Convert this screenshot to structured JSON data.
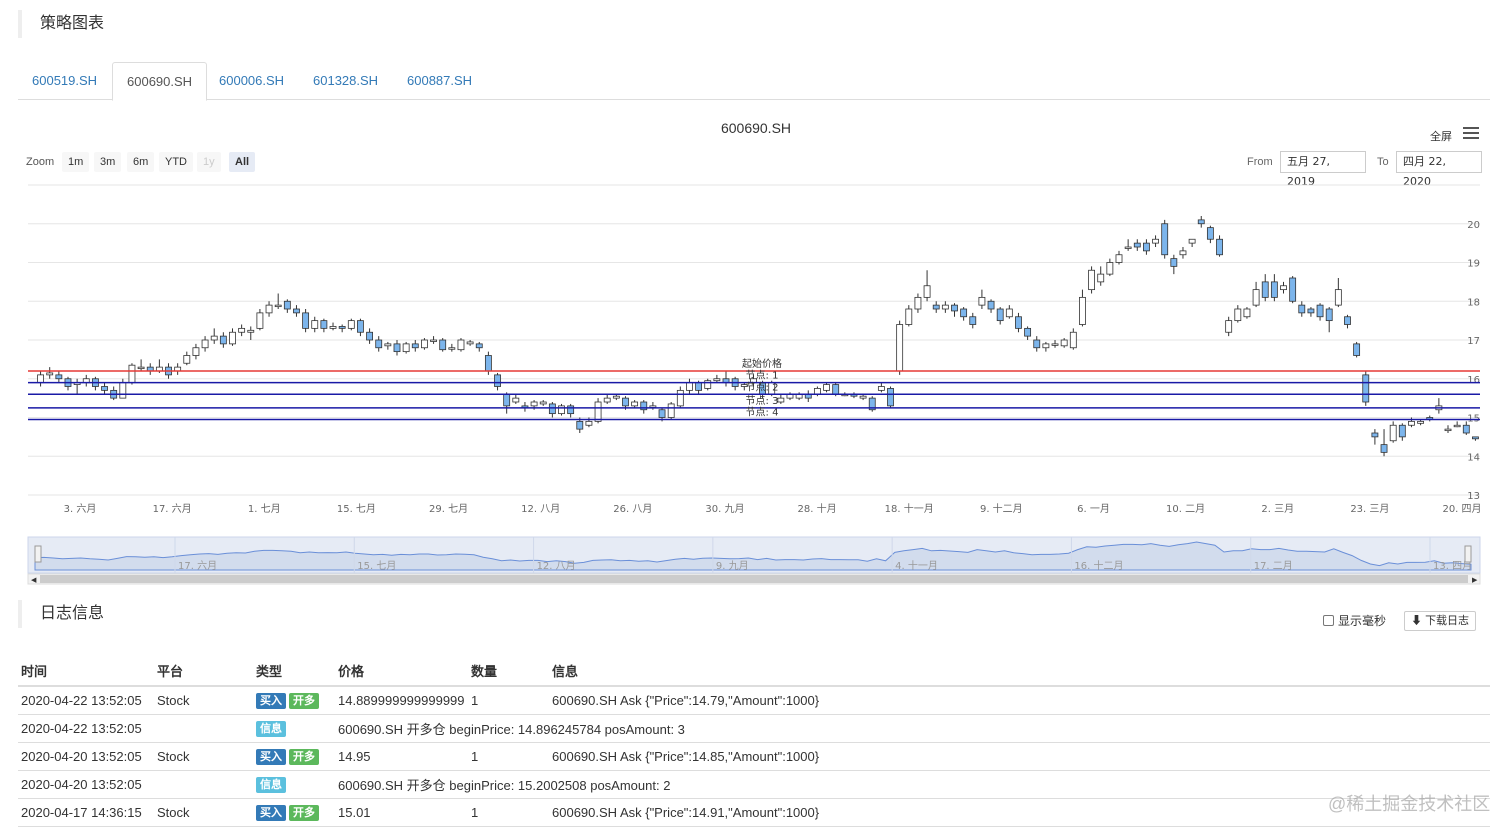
{
  "panel": {
    "title": "策略图表"
  },
  "tabs": [
    {
      "label": "600519.SH"
    },
    {
      "label": "600690.SH"
    },
    {
      "label": "600006.SH"
    },
    {
      "label": "601328.SH"
    },
    {
      "label": "600887.SH"
    }
  ],
  "chart_header": {
    "title": "600690.SH",
    "fullscreen": "全屏",
    "zoom_label": "Zoom",
    "zoom_buttons": [
      "1m",
      "3m",
      "6m",
      "YTD",
      "1y",
      "All"
    ],
    "from_label": "From",
    "from_value": "五月 27, 2019",
    "to_label": "To",
    "to_value": "四月 22, 2020"
  },
  "chart_data": {
    "type": "candlestick",
    "title": "600690.SH",
    "ylim": [
      13,
      21
    ],
    "yticks": [
      13,
      14,
      15,
      16,
      17,
      18,
      19,
      20
    ],
    "xticks": [
      "3. 六月",
      "17. 六月",
      "1. 七月",
      "15. 七月",
      "29. 七月",
      "12. 八月",
      "26. 八月",
      "30. 九月",
      "28. 十月",
      "18. 十一月",
      "9. 十二月",
      "6. 一月",
      "10. 二月",
      "2. 三月",
      "23. 三月",
      "20. 四月"
    ],
    "navigator_ticks": [
      "17. 六月",
      "15. 七月",
      "12. 八月",
      "9. 九月",
      "4. 十一月",
      "16. 十二月",
      "17. 二月",
      "13. 四月"
    ],
    "hlines": [
      {
        "value": 16.2,
        "color": "#e53935",
        "label": "起始价格"
      },
      {
        "value": 15.9,
        "color": "#1a1aa6",
        "label": "节点: 1"
      },
      {
        "value": 15.6,
        "color": "#1a1aa6",
        "label": "节点: 2"
      },
      {
        "value": 15.25,
        "color": "#1a1aa6",
        "label": "节点: 3"
      },
      {
        "value": 14.95,
        "color": "#1a1aa6",
        "label": "节点: 4"
      }
    ],
    "candles": [
      [
        15.9,
        16.1,
        15.8,
        16.2
      ],
      [
        16.1,
        16.15,
        16.0,
        16.3
      ],
      [
        16.1,
        16.0,
        15.9,
        16.2
      ],
      [
        16.0,
        15.8,
        15.7,
        16.05
      ],
      [
        15.85,
        15.9,
        15.6,
        16.0
      ],
      [
        15.9,
        16.0,
        15.8,
        16.1
      ],
      [
        16.0,
        15.8,
        15.7,
        16.05
      ],
      [
        15.8,
        15.7,
        15.6,
        15.9
      ],
      [
        15.7,
        15.5,
        15.45,
        15.8
      ],
      [
        15.5,
        15.9,
        15.5,
        16.0
      ],
      [
        15.9,
        16.35,
        15.85,
        16.4
      ],
      [
        16.3,
        16.3,
        16.2,
        16.5
      ],
      [
        16.3,
        16.2,
        16.1,
        16.4
      ],
      [
        16.2,
        16.3,
        16.15,
        16.5
      ],
      [
        16.3,
        16.1,
        16.0,
        16.4
      ],
      [
        16.2,
        16.3,
        16.1,
        16.4
      ],
      [
        16.4,
        16.6,
        16.35,
        16.7
      ],
      [
        16.6,
        16.8,
        16.5,
        16.9
      ],
      [
        16.8,
        17.0,
        16.7,
        17.1
      ],
      [
        17.0,
        17.1,
        16.9,
        17.3
      ],
      [
        17.1,
        16.9,
        16.8,
        17.2
      ],
      [
        16.9,
        17.2,
        16.85,
        17.3
      ],
      [
        17.2,
        17.3,
        17.1,
        17.4
      ],
      [
        17.2,
        17.25,
        17.0,
        17.35
      ],
      [
        17.3,
        17.7,
        17.25,
        17.8
      ],
      [
        17.7,
        17.9,
        17.6,
        18.0
      ],
      [
        17.9,
        17.9,
        17.8,
        18.2
      ],
      [
        18.0,
        17.8,
        17.7,
        18.05
      ],
      [
        17.8,
        17.7,
        17.6,
        17.9
      ],
      [
        17.7,
        17.3,
        17.2,
        17.8
      ],
      [
        17.3,
        17.5,
        17.2,
        17.6
      ],
      [
        17.5,
        17.3,
        17.2,
        17.55
      ],
      [
        17.3,
        17.35,
        17.25,
        17.45
      ],
      [
        17.35,
        17.3,
        17.2,
        17.4
      ],
      [
        17.3,
        17.5,
        17.25,
        17.55
      ],
      [
        17.5,
        17.2,
        17.1,
        17.55
      ],
      [
        17.2,
        17.0,
        16.9,
        17.3
      ],
      [
        17.0,
        16.8,
        16.7,
        17.1
      ],
      [
        16.85,
        16.9,
        16.75,
        16.95
      ],
      [
        16.9,
        16.7,
        16.6,
        17.0
      ],
      [
        16.7,
        16.9,
        16.65,
        16.95
      ],
      [
        16.9,
        16.8,
        16.7,
        17.0
      ],
      [
        16.8,
        17.0,
        16.75,
        17.05
      ],
      [
        17.0,
        17.0,
        16.9,
        17.1
      ],
      [
        17.0,
        16.75,
        16.7,
        17.05
      ],
      [
        16.8,
        16.8,
        16.7,
        16.9
      ],
      [
        16.75,
        17.0,
        16.7,
        17.05
      ],
      [
        16.9,
        16.95,
        16.85,
        17.0
      ],
      [
        16.9,
        16.8,
        16.7,
        16.95
      ],
      [
        16.6,
        16.2,
        16.1,
        16.7
      ],
      [
        16.1,
        15.8,
        15.7,
        16.15
      ],
      [
        15.6,
        15.3,
        15.1,
        15.65
      ],
      [
        15.4,
        15.5,
        15.35,
        15.6
      ],
      [
        15.3,
        15.25,
        15.15,
        15.4
      ],
      [
        15.3,
        15.4,
        15.2,
        15.45
      ],
      [
        15.35,
        15.4,
        15.3,
        15.45
      ],
      [
        15.35,
        15.1,
        15.0,
        15.4
      ],
      [
        15.1,
        15.3,
        15.05,
        15.35
      ],
      [
        15.3,
        15.1,
        15.0,
        15.35
      ],
      [
        14.9,
        14.7,
        14.6,
        15.0
      ],
      [
        14.8,
        14.9,
        14.75,
        15.0
      ],
      [
        14.9,
        15.4,
        14.85,
        15.5
      ],
      [
        15.4,
        15.5,
        15.35,
        15.6
      ],
      [
        15.5,
        15.55,
        15.45,
        15.6
      ],
      [
        15.5,
        15.3,
        15.2,
        15.55
      ],
      [
        15.3,
        15.4,
        15.25,
        15.45
      ],
      [
        15.4,
        15.2,
        15.1,
        15.45
      ],
      [
        15.3,
        15.3,
        15.2,
        15.4
      ],
      [
        15.2,
        15.0,
        14.9,
        15.25
      ],
      [
        15.0,
        15.35,
        14.95,
        15.4
      ],
      [
        15.3,
        15.7,
        15.25,
        15.8
      ],
      [
        15.7,
        15.9,
        15.6,
        16.0
      ],
      [
        15.9,
        15.7,
        15.6,
        15.95
      ],
      [
        15.75,
        15.95,
        15.7,
        16.0
      ],
      [
        15.95,
        16.0,
        15.9,
        16.1
      ],
      [
        16.0,
        15.9,
        15.8,
        16.2
      ],
      [
        16.0,
        15.8,
        15.7,
        16.05
      ],
      [
        15.8,
        15.85,
        15.7,
        15.9
      ],
      [
        15.9,
        16.0,
        15.8,
        16.1
      ],
      [
        15.9,
        15.6,
        15.5,
        15.95
      ],
      [
        15.6,
        15.9,
        15.55,
        15.95
      ],
      [
        15.4,
        15.5,
        15.35,
        15.6
      ],
      [
        15.5,
        15.6,
        15.45,
        15.65
      ],
      [
        15.5,
        15.6,
        15.45,
        15.65
      ],
      [
        15.6,
        15.5,
        15.4,
        15.7
      ],
      [
        15.6,
        15.75,
        15.55,
        15.8
      ],
      [
        15.7,
        15.85,
        15.65,
        15.9
      ],
      [
        15.85,
        15.6,
        15.55,
        15.9
      ],
      [
        15.6,
        15.6,
        15.55,
        15.65
      ],
      [
        15.6,
        15.55,
        15.5,
        15.65
      ],
      [
        15.5,
        15.55,
        15.45,
        15.6
      ],
      [
        15.5,
        15.2,
        15.15,
        15.55
      ],
      [
        15.7,
        15.8,
        15.65,
        15.9
      ],
      [
        15.75,
        15.3,
        15.25,
        15.8
      ],
      [
        16.2,
        17.4,
        16.1,
        17.5
      ],
      [
        17.4,
        17.8,
        17.35,
        17.9
      ],
      [
        17.8,
        18.1,
        17.7,
        18.2
      ],
      [
        18.1,
        18.4,
        18.0,
        18.8
      ],
      [
        17.9,
        17.8,
        17.7,
        18.0
      ],
      [
        17.8,
        17.9,
        17.7,
        18.0
      ],
      [
        17.9,
        17.75,
        17.6,
        17.95
      ],
      [
        17.8,
        17.6,
        17.5,
        17.85
      ],
      [
        17.6,
        17.4,
        17.3,
        17.7
      ],
      [
        17.9,
        18.1,
        17.8,
        18.3
      ],
      [
        18.0,
        17.8,
        17.7,
        18.05
      ],
      [
        17.8,
        17.5,
        17.4,
        17.85
      ],
      [
        17.6,
        17.8,
        17.55,
        17.9
      ],
      [
        17.6,
        17.3,
        17.2,
        17.7
      ],
      [
        17.3,
        17.1,
        17.0,
        17.35
      ],
      [
        17.0,
        16.8,
        16.7,
        17.1
      ],
      [
        16.8,
        16.9,
        16.7,
        16.95
      ],
      [
        16.9,
        16.9,
        16.8,
        17.0
      ],
      [
        16.85,
        17.0,
        16.8,
        17.05
      ],
      [
        16.8,
        17.2,
        16.75,
        17.3
      ],
      [
        17.4,
        18.1,
        17.35,
        18.3
      ],
      [
        18.3,
        18.8,
        18.2,
        18.9
      ],
      [
        18.5,
        18.7,
        18.4,
        18.9
      ],
      [
        18.7,
        19.0,
        18.65,
        19.1
      ],
      [
        19.0,
        19.2,
        18.95,
        19.3
      ],
      [
        19.4,
        19.4,
        19.3,
        19.6
      ],
      [
        19.5,
        19.4,
        19.3,
        19.6
      ],
      [
        19.5,
        19.3,
        19.2,
        19.6
      ],
      [
        19.5,
        19.6,
        19.4,
        19.7
      ],
      [
        20.0,
        19.2,
        19.1,
        20.1
      ],
      [
        19.1,
        18.9,
        18.7,
        19.2
      ],
      [
        19.2,
        19.3,
        19.1,
        19.4
      ],
      [
        19.5,
        19.6,
        19.4,
        19.6
      ],
      [
        20.1,
        20.0,
        19.9,
        20.2
      ],
      [
        19.9,
        19.6,
        19.5,
        19.95
      ],
      [
        19.6,
        19.2,
        19.15,
        19.7
      ],
      [
        17.2,
        17.5,
        17.1,
        17.6
      ],
      [
        17.5,
        17.8,
        17.45,
        17.9
      ],
      [
        17.6,
        17.8,
        17.55,
        17.85
      ],
      [
        17.9,
        18.3,
        17.85,
        18.5
      ],
      [
        18.5,
        18.1,
        18.0,
        18.7
      ],
      [
        18.5,
        18.1,
        18.0,
        18.7
      ],
      [
        18.3,
        18.4,
        18.2,
        18.5
      ],
      [
        18.6,
        18.0,
        17.95,
        18.65
      ],
      [
        17.9,
        17.7,
        17.6,
        18.0
      ],
      [
        17.8,
        17.7,
        17.6,
        17.85
      ],
      [
        17.9,
        17.6,
        17.5,
        17.95
      ],
      [
        17.8,
        17.5,
        17.2,
        17.85
      ],
      [
        17.9,
        18.3,
        17.85,
        18.6
      ],
      [
        17.6,
        17.4,
        17.3,
        17.65
      ],
      [
        16.9,
        16.6,
        16.55,
        16.95
      ],
      [
        16.1,
        15.4,
        15.3,
        16.2
      ],
      [
        14.6,
        14.5,
        14.3,
        14.7
      ],
      [
        14.3,
        14.1,
        14.0,
        14.7
      ],
      [
        14.4,
        14.8,
        14.35,
        14.9
      ],
      [
        14.8,
        14.5,
        14.4,
        14.85
      ],
      [
        14.8,
        14.9,
        14.75,
        15.0
      ],
      [
        14.85,
        14.9,
        14.8,
        14.95
      ],
      [
        15.0,
        14.95,
        14.9,
        15.05
      ],
      [
        15.2,
        15.3,
        15.1,
        15.5
      ],
      [
        14.7,
        14.7,
        14.6,
        14.8
      ],
      [
        14.8,
        14.8,
        14.75,
        14.9
      ],
      [
        14.8,
        14.6,
        14.55,
        14.9
      ],
      [
        14.5,
        14.45,
        14.4,
        14.5
      ]
    ]
  },
  "log": {
    "title": "日志信息",
    "show_ms": "显示毫秒",
    "download": "下载日志",
    "headers": [
      "时间",
      "平台",
      "类型",
      "价格",
      "数量",
      "信息"
    ],
    "rows": [
      {
        "time": "2020-04-22 13:52:05",
        "platform": "Stock",
        "badges": [
          "买入",
          "开多"
        ],
        "price": "14.889999999999999",
        "amount": "1",
        "info": "600690.SH Ask {\"Price\":14.79,\"Amount\":1000}"
      },
      {
        "time": "2020-04-22 13:52:05",
        "platform": "",
        "badges": [
          "信息"
        ],
        "price": "600690.SH 开多仓 beginPrice: 14.896245784 posAmount: 3",
        "amount": "",
        "info": ""
      },
      {
        "time": "2020-04-20 13:52:05",
        "platform": "Stock",
        "badges": [
          "买入",
          "开多"
        ],
        "price": "14.95",
        "amount": "1",
        "info": "600690.SH Ask {\"Price\":14.85,\"Amount\":1000}"
      },
      {
        "time": "2020-04-20 13:52:05",
        "platform": "",
        "badges": [
          "信息"
        ],
        "price": "600690.SH 开多仓 beginPrice: 15.2002508 posAmount: 2",
        "amount": "",
        "info": ""
      },
      {
        "time": "2020-04-17 14:36:15",
        "platform": "Stock",
        "badges": [
          "买入",
          "开多"
        ],
        "price": "15.01",
        "amount": "1",
        "info": "600690.SH Ask {\"Price\":14.91,\"Amount\":1000}"
      }
    ]
  },
  "watermark": "@稀土掘金技术社区"
}
